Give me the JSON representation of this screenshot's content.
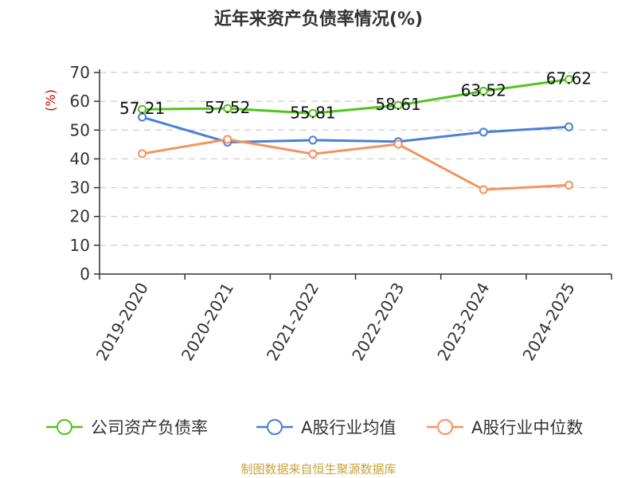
{
  "chart_data": {
    "type": "line",
    "title": "近年来资产负债率情况(%)",
    "ylabel": "(%)",
    "categories": [
      "2019-2020",
      "2020-2021",
      "2021-2022",
      "2022-2023",
      "2023-2024",
      "2024-2025"
    ],
    "ylim": [
      0,
      70
    ],
    "yticks": [
      0,
      10,
      20,
      30,
      40,
      50,
      60,
      70
    ],
    "grid": true,
    "legend": "bottom",
    "series": [
      {
        "name": "公司资产负债率",
        "color": "#52c41a",
        "values": [
          57.21,
          57.52,
          55.81,
          58.61,
          63.52,
          67.62
        ],
        "labels": [
          "57.21",
          "57.52",
          "55.81",
          "58.61",
          "63.52",
          "67.62"
        ]
      },
      {
        "name": "A股行业均值",
        "color": "#4a7fd6",
        "values": [
          54.5,
          45.8,
          46.5,
          46.0,
          49.3,
          51.1
        ]
      },
      {
        "name": "A股行业中位数",
        "color": "#f5925e",
        "values": [
          41.8,
          46.8,
          41.7,
          45.1,
          29.3,
          30.9
        ]
      }
    ]
  },
  "source_note": "制图数据来自恒生聚源数据库",
  "colors": {
    "axis": "#333333",
    "grid": "#cccccc",
    "ylabel": "#cc0000"
  }
}
